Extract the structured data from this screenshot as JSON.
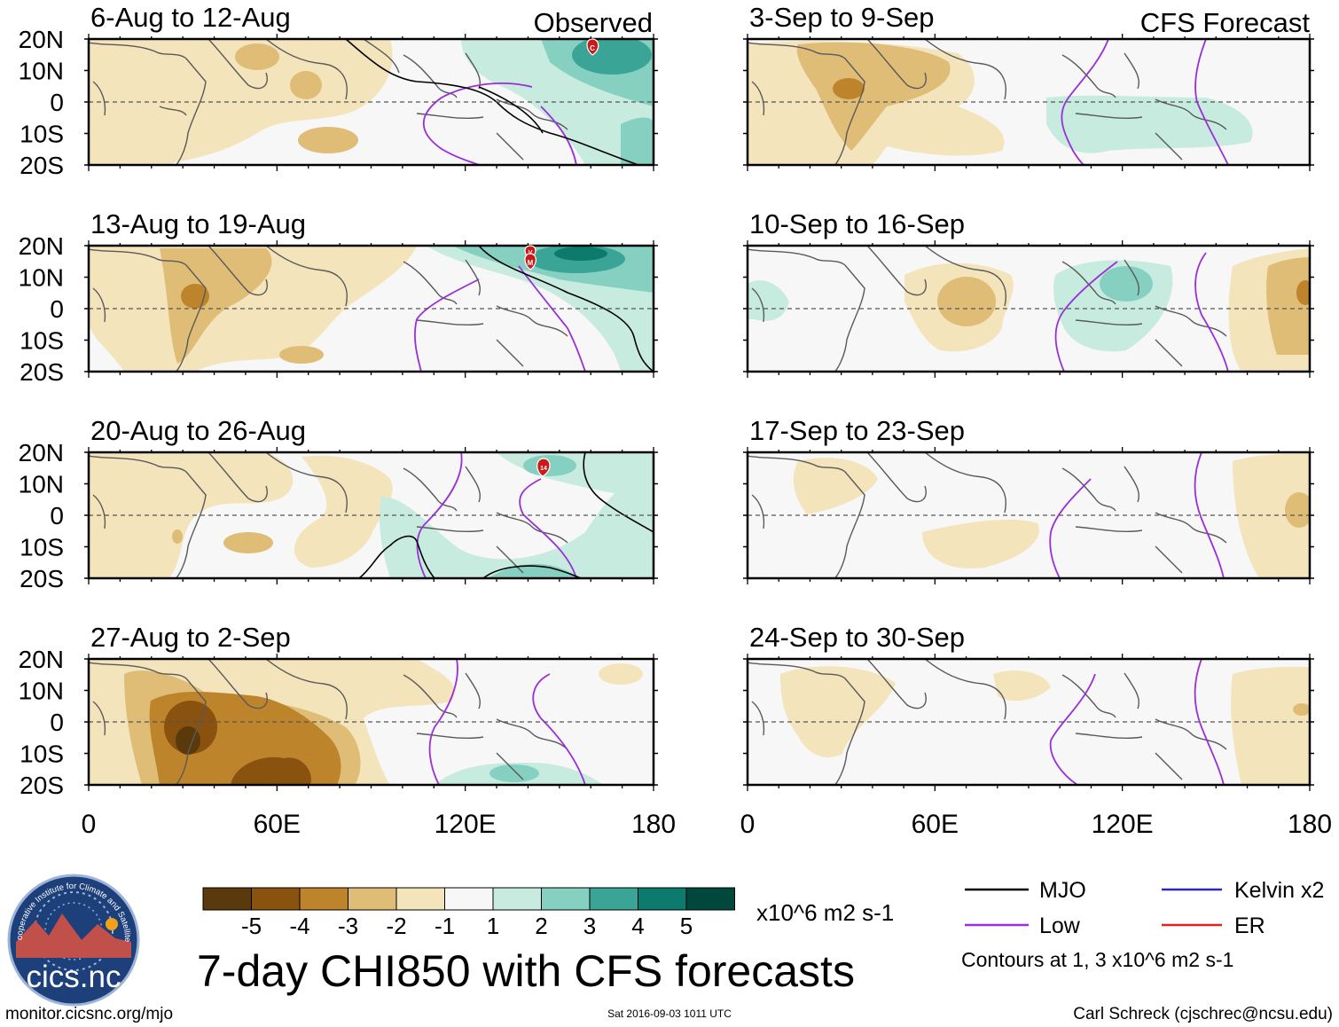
{
  "colors": {
    "dry": [
      "#5a3a0c",
      "#8a520f",
      "#bd842c",
      "#dfbd77",
      "#f4e4bc"
    ],
    "neutral": "#f7f7f7",
    "wet": [
      "#c8ebe0",
      "#86d0c2",
      "#3aa596",
      "#0c7a6c",
      "#00473c"
    ],
    "mjo": "#000000",
    "low": "#9a2fd8",
    "kelvin": "#2a2ab8",
    "er": "#dd2222",
    "land": "#5a5a5a"
  },
  "axes": {
    "lat_labels": [
      "20N",
      "10N",
      "0",
      "10S",
      "20S"
    ],
    "lon_labels": [
      "0",
      "60E",
      "120E",
      "180"
    ]
  },
  "columns": [
    {
      "header": "Observed"
    },
    {
      "header": "CFS Forecast"
    }
  ],
  "panels": [
    {
      "title": "6-Aug to 12-Aug"
    },
    {
      "title": "13-Aug to 19-Aug"
    },
    {
      "title": "20-Aug to 26-Aug"
    },
    {
      "title": "27-Aug to 2-Sep"
    },
    {
      "title": "3-Sep to 9-Sep"
    },
    {
      "title": "10-Sep to 16-Sep"
    },
    {
      "title": "17-Sep to 23-Sep"
    },
    {
      "title": "24-Sep to 30-Sep"
    }
  ],
  "storm_markers": [
    {
      "label": "C"
    },
    {
      "label": "V"
    },
    {
      "label": "M"
    },
    {
      "label": "14"
    }
  ],
  "colorbar": {
    "ticks": [
      "-5",
      "-4",
      "-3",
      "-2",
      "-1",
      "1",
      "2",
      "3",
      "4",
      "5"
    ],
    "units": "x10^6 m2 s-1"
  },
  "legend": {
    "items": [
      "MJO",
      "Low",
      "Kelvin x2",
      "ER"
    ],
    "note": "Contours at 1, 3 x10^6 m2 s-1"
  },
  "title": "7-day CHI850 with CFS forecasts",
  "logo_text": "cics.nc",
  "logo_ring_text": "Cooperative Institute for Climate and Satellites",
  "footer": {
    "left": "monitor.cicsnc.org/mjo",
    "center": "Sat 2016-09-03 1011 UTC",
    "right": "Carl Schreck (cjschrec@ncsu.edu)"
  }
}
